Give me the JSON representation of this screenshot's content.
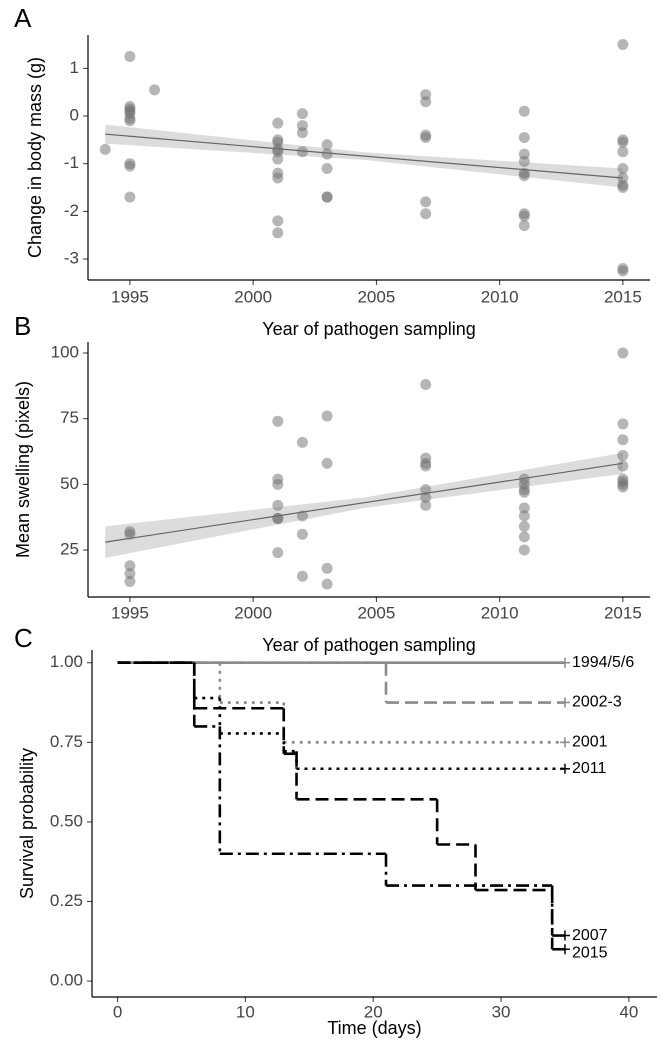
{
  "chart_data": [
    {
      "type": "scatter",
      "panel_label": "A",
      "x_label": "Year of pathogen sampling",
      "y_label": "Change in body mass (g)",
      "x": [
        1994,
        1995,
        1995,
        1995,
        1995,
        1995,
        1995,
        1995,
        1995,
        1995,
        1995,
        1996,
        2001,
        2001,
        2001,
        2001,
        2001,
        2001,
        2001,
        2001,
        2001,
        2001,
        2002,
        2002,
        2002,
        2002,
        2003,
        2003,
        2003,
        2003,
        2003,
        2007,
        2007,
        2007,
        2007,
        2007,
        2007,
        2011,
        2011,
        2011,
        2011,
        2011,
        2011,
        2011,
        2011,
        2011,
        2015,
        2015,
        2015,
        2015,
        2015,
        2015,
        2015,
        2015,
        2015,
        2015
      ],
      "y": [
        -0.7,
        1.25,
        0.2,
        0.15,
        0.1,
        0.05,
        -0.05,
        -0.1,
        -1.0,
        -1.05,
        -1.7,
        0.55,
        -0.15,
        -0.5,
        -0.55,
        -0.7,
        -0.75,
        -0.9,
        -1.2,
        -1.3,
        -2.2,
        -2.45,
        0.05,
        -0.2,
        -0.35,
        -0.75,
        -0.6,
        -0.8,
        -1.1,
        -1.7,
        -1.7,
        0.45,
        0.3,
        -0.4,
        -0.45,
        -1.8,
        -2.05,
        0.1,
        -0.45,
        -0.8,
        -0.95,
        -1.2,
        -1.25,
        -2.05,
        -2.1,
        -2.3,
        1.5,
        -0.5,
        -0.55,
        -0.75,
        -1.1,
        -1.3,
        -1.45,
        -1.5,
        -3.2,
        -3.25
      ],
      "color": "#6e6e6e",
      "trend": {
        "x": [
          1994,
          2015
        ],
        "y": [
          -0.38,
          -1.3
        ],
        "color": "#666666"
      },
      "band": {
        "x": [
          1994,
          2004.5,
          2015
        ],
        "lower": [
          -0.58,
          -0.92,
          -1.5
        ],
        "upper": [
          -0.18,
          -0.76,
          -1.1
        ],
        "color": "#dcdcdc"
      },
      "xlim": [
        1993.3,
        2016.1
      ],
      "ylim": [
        -3.44,
        1.7
      ],
      "xticks": [
        1995,
        2000,
        2005,
        2010,
        2015
      ],
      "yticks": [
        1,
        0,
        -1,
        -2,
        -3
      ]
    },
    {
      "type": "scatter",
      "panel_label": "B",
      "x_label": "Year of pathogen sampling",
      "y_label": "Mean swelling (pixels)",
      "x": [
        1995,
        1995,
        1995,
        1995,
        1995,
        2001,
        2001,
        2001,
        2001,
        2001,
        2001,
        2001,
        2002,
        2002,
        2002,
        2002,
        2003,
        2003,
        2003,
        2003,
        2007,
        2007,
        2007,
        2007,
        2007,
        2007,
        2007,
        2011,
        2011,
        2011,
        2011,
        2011,
        2011,
        2011,
        2011,
        2011,
        2015,
        2015,
        2015,
        2015,
        2015,
        2015,
        2015,
        2015,
        2015
      ],
      "y": [
        32,
        31,
        19,
        16,
        13,
        74,
        52,
        50,
        42,
        37,
        37,
        24,
        66,
        38,
        31,
        15,
        76,
        58,
        18,
        12,
        88,
        60,
        58,
        57,
        48,
        45,
        42,
        52,
        50,
        48,
        47,
        41,
        38,
        34,
        30,
        25,
        100,
        73,
        67,
        61,
        57,
        52,
        51,
        50,
        49
      ],
      "color": "#6e6e6e",
      "trend": {
        "x": [
          1994,
          2015
        ],
        "y": [
          28,
          58
        ],
        "color": "#666666"
      },
      "band": {
        "x": [
          1994,
          2004.5,
          2015
        ],
        "lower": [
          22,
          41,
          54
        ],
        "upper": [
          34,
          45,
          62
        ],
        "color": "#dcdcdc"
      },
      "xlim": [
        1993.3,
        2016.1
      ],
      "ylim": [
        7.1,
        104.2
      ],
      "xticks": [
        1995,
        2000,
        2005,
        2010,
        2015
      ],
      "yticks": [
        100,
        75,
        50,
        25
      ]
    },
    {
      "type": "step",
      "panel_label": "C",
      "x_label": "Time (days)",
      "y_label": "Survival probability",
      "series": [
        {
          "name": "1994/5/6",
          "color": "#8a8a8a",
          "dash": "solid",
          "x": [
            0,
            35
          ],
          "values": [
            1,
            1
          ]
        },
        {
          "name": "2002-3",
          "color": "#8a8a8a",
          "dash": "dashed",
          "x": [
            0,
            21,
            35
          ],
          "values": [
            1,
            0.875,
            0.875
          ]
        },
        {
          "name": "2001",
          "color": "#8a8a8a",
          "dash": "dotted",
          "x": [
            0,
            8,
            13,
            35
          ],
          "values": [
            1,
            0.875,
            0.75,
            0.75
          ]
        },
        {
          "name": "2011",
          "color": "#000000",
          "dash": "dotted",
          "x": [
            0,
            6,
            8,
            13,
            14,
            35
          ],
          "values": [
            1,
            0.889,
            0.778,
            0.722,
            0.667,
            0.667
          ]
        },
        {
          "name": "2007",
          "color": "#000000",
          "dash": "dashed",
          "x": [
            0,
            6,
            13,
            14,
            25,
            28,
            34,
            35
          ],
          "values": [
            1,
            0.857,
            0.714,
            0.571,
            0.429,
            0.286,
            0.143,
            0.143
          ]
        },
        {
          "name": "2015",
          "color": "#000000",
          "dash": "dashdot",
          "x": [
            0,
            6,
            8,
            21,
            34,
            35
          ],
          "values": [
            1,
            0.8,
            0.4,
            0.3,
            0.1,
            0.1
          ]
        }
      ],
      "xlim": [
        -2,
        42.2
      ],
      "ylim": [
        -0.05,
        1.04
      ],
      "xticks": [
        0,
        10,
        20,
        30,
        40
      ],
      "yticks": [
        {
          "value": 1,
          "label": "1.00"
        },
        {
          "value": 0.75,
          "label": "0.75"
        },
        {
          "value": 0.5,
          "label": "0.50"
        },
        {
          "value": 0.25,
          "label": "0.25"
        },
        {
          "value": 0,
          "label": "0.00"
        }
      ]
    }
  ]
}
